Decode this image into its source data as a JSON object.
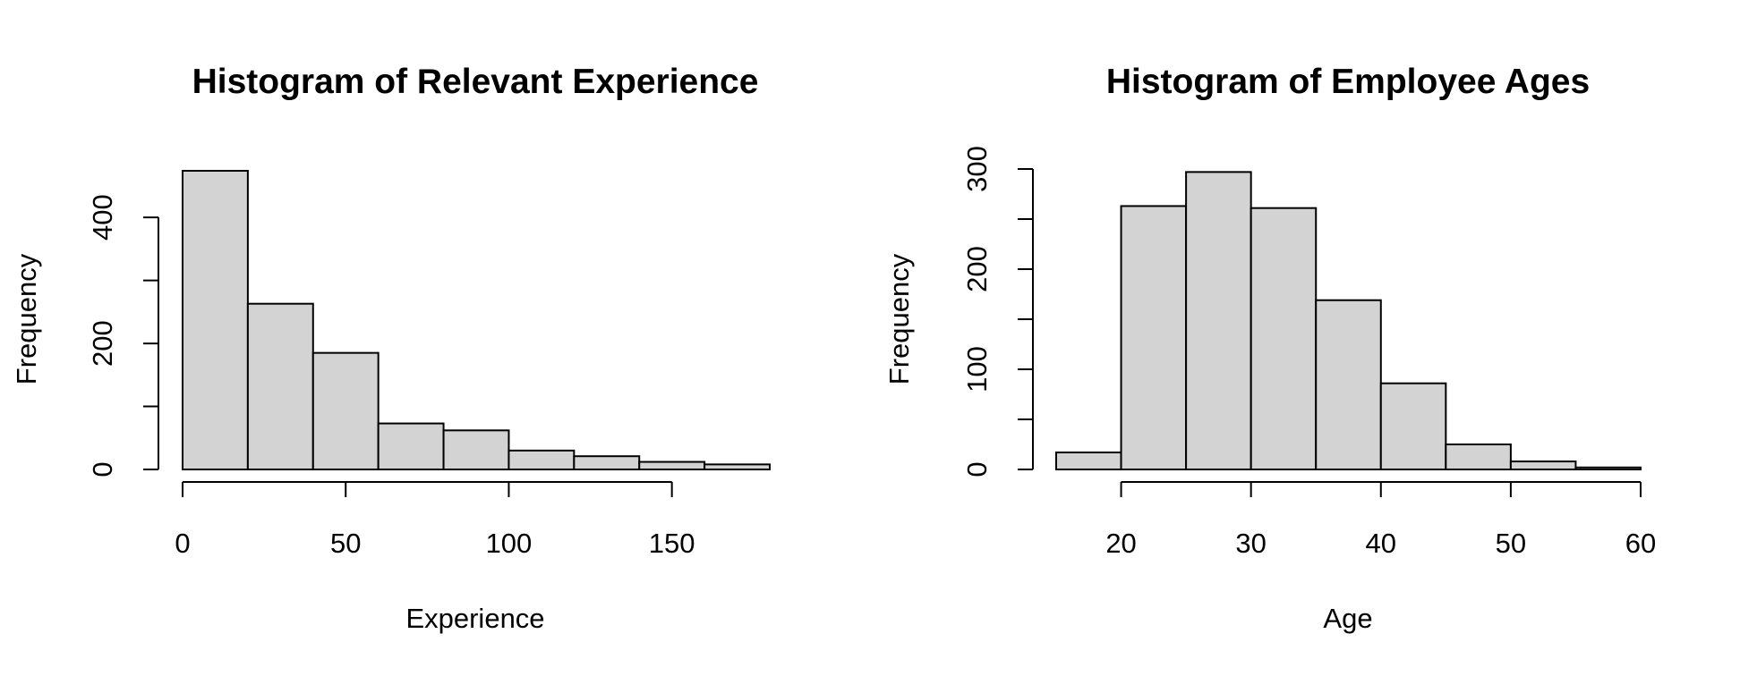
{
  "chart_data": [
    {
      "type": "bar",
      "title": "Histogram of Relevant Experience",
      "xlabel": "Experience",
      "ylabel": "Frequency",
      "bin_edges": [
        0,
        20,
        40,
        60,
        80,
        100,
        120,
        140,
        160,
        180
      ],
      "values": [
        474,
        263,
        185,
        73,
        62,
        30,
        21,
        12,
        8
      ],
      "xlim": [
        0,
        180
      ],
      "ylim": [
        0,
        474
      ],
      "x_ticks": [
        0,
        50,
        100,
        150
      ],
      "x_tick_labels": [
        "0",
        "50",
        "100",
        "150"
      ],
      "y_ticks": [
        0,
        100,
        200,
        300,
        400
      ],
      "y_tick_labels": [
        "0",
        "",
        "200",
        "",
        "400"
      ],
      "grid": false,
      "legend": "none"
    },
    {
      "type": "bar",
      "title": "Histogram of Employee Ages",
      "xlabel": "Age",
      "ylabel": "Frequency",
      "bin_edges": [
        15,
        20,
        25,
        30,
        35,
        40,
        45,
        50,
        55,
        60
      ],
      "values": [
        17,
        263,
        297,
        261,
        169,
        86,
        25,
        8,
        2
      ],
      "xlim": [
        15,
        60
      ],
      "ylim": [
        0,
        300
      ],
      "x_ticks": [
        20,
        30,
        40,
        50,
        60
      ],
      "x_tick_labels": [
        "20",
        "30",
        "40",
        "50",
        "60"
      ],
      "y_ticks": [
        0,
        50,
        100,
        150,
        200,
        250,
        300
      ],
      "y_tick_labels": [
        "0",
        "",
        "100",
        "",
        "200",
        "",
        "300"
      ],
      "grid": false,
      "legend": "none"
    }
  ]
}
